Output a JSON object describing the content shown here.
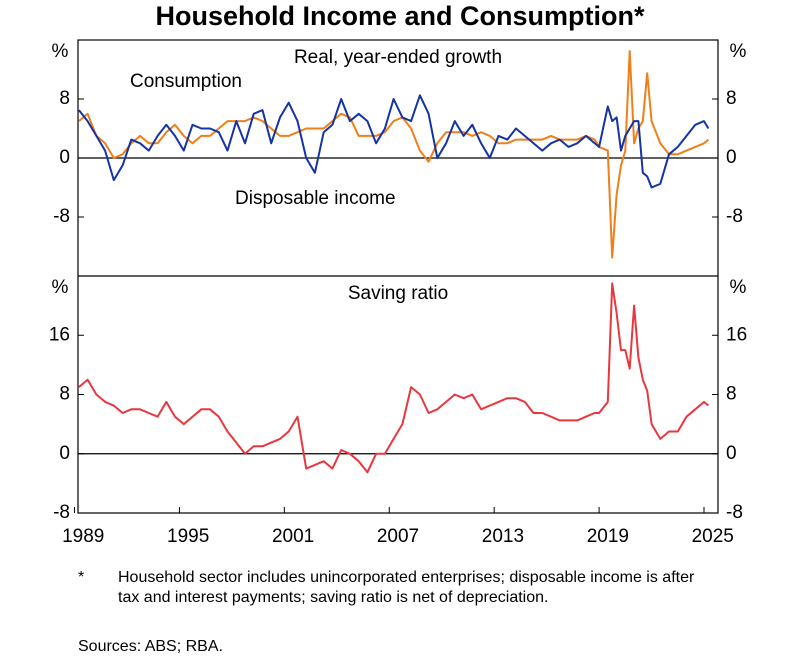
{
  "title": "Household Income and Consumption*",
  "footnote": {
    "marker": "*",
    "text": "Household sector includes unincorporated enterprises; disposable income is after tax and interest payments; saving ratio is net of depreciation."
  },
  "sources": "Sources: ABS; RBA.",
  "chart_data": [
    {
      "type": "line",
      "subtitle": "Real, year-ended growth",
      "y_unit": "%",
      "xlim": [
        1989.2,
        2025.8
      ],
      "ylim": [
        -16,
        16
      ],
      "yticks": [
        -8,
        0,
        8
      ],
      "x": [
        1989.25,
        1989.75,
        1990.25,
        1990.75,
        1991.25,
        1991.75,
        1992.25,
        1992.75,
        1993.25,
        1993.75,
        1994.25,
        1994.75,
        1995.25,
        1995.75,
        1996.25,
        1996.75,
        1997.25,
        1997.75,
        1998.25,
        1998.75,
        1999.25,
        1999.75,
        2000.25,
        2000.75,
        2001.25,
        2001.75,
        2002.25,
        2002.75,
        2003.25,
        2003.75,
        2004.25,
        2004.75,
        2005.25,
        2005.75,
        2006.25,
        2006.75,
        2007.25,
        2007.75,
        2008.25,
        2008.75,
        2009.25,
        2009.75,
        2010.25,
        2010.75,
        2011.25,
        2011.75,
        2012.25,
        2012.75,
        2013.25,
        2013.75,
        2014.25,
        2014.75,
        2015.25,
        2015.75,
        2016.25,
        2016.75,
        2017.25,
        2017.75,
        2018.25,
        2018.75,
        2019,
        2019.5,
        2019.75,
        2020,
        2020.25,
        2020.5,
        2020.75,
        2021,
        2021.25,
        2021.5,
        2021.75,
        2022,
        2022.5,
        2023,
        2023.5,
        2024,
        2024.5,
        2025,
        2025.25
      ],
      "series": [
        {
          "name": "Consumption",
          "color": "#f07f1a",
          "values": [
            5,
            6,
            3,
            2,
            0,
            0.5,
            2,
            3,
            2,
            2,
            3.5,
            4.5,
            3,
            2,
            3,
            3,
            4,
            5,
            5,
            5,
            5.5,
            5,
            4,
            3,
            3,
            3.5,
            4,
            4,
            4,
            5,
            6,
            5.5,
            3,
            3,
            3,
            3.5,
            5,
            5.5,
            4,
            1,
            -0.5,
            2,
            3.5,
            3.5,
            3.5,
            3,
            3.5,
            3,
            2,
            2,
            2.5,
            2.5,
            2.5,
            2.5,
            3,
            2.5,
            2.5,
            2.5,
            3,
            2.5,
            1.5,
            1,
            -13.5,
            -5,
            -1,
            1,
            14.5,
            2,
            4,
            5,
            11.5,
            5,
            2,
            0.5,
            0.5,
            1,
            1.5,
            2,
            2.5
          ]
        },
        {
          "name": "Disposable income",
          "color": "#1434a4",
          "values": [
            6.5,
            5,
            3,
            1,
            -3,
            -1,
            2.5,
            2,
            1,
            3,
            4.5,
            3,
            1,
            4.5,
            4,
            4,
            3.5,
            1,
            5,
            2,
            6,
            6.5,
            2,
            5.5,
            7.5,
            5,
            0,
            -2,
            3.5,
            4.5,
            8,
            5,
            6,
            5,
            2,
            4,
            8,
            5.5,
            5,
            8.5,
            6,
            0,
            2,
            5,
            3,
            4.5,
            2,
            0,
            3,
            2.5,
            4,
            3,
            2,
            1,
            2,
            2.5,
            1.5,
            2,
            3,
            2,
            1.5,
            7,
            5,
            5.5,
            1,
            3,
            4,
            5,
            5,
            -2,
            -2.5,
            -4,
            -3.5,
            0.5,
            1.5,
            3,
            4.5,
            5,
            4
          ]
        }
      ]
    },
    {
      "type": "line",
      "subtitle": "Saving ratio",
      "y_unit": "%",
      "xlim": [
        1989.2,
        2025.8
      ],
      "ylim": [
        -8,
        24
      ],
      "yticks": [
        -8,
        0,
        8,
        16
      ],
      "xticks": [
        1989,
        1995,
        2001,
        2007,
        2013,
        2019,
        2025
      ],
      "x": [
        1989.25,
        1989.75,
        1990.25,
        1990.75,
        1991.25,
        1991.75,
        1992.25,
        1992.75,
        1993.25,
        1993.75,
        1994.25,
        1994.75,
        1995.25,
        1995.75,
        1996.25,
        1996.75,
        1997.25,
        1997.75,
        1998.25,
        1998.75,
        1999.25,
        1999.75,
        2000.25,
        2000.75,
        2001.25,
        2001.75,
        2002.25,
        2002.75,
        2003.25,
        2003.75,
        2004.25,
        2004.75,
        2005.25,
        2005.75,
        2006.25,
        2006.75,
        2007.25,
        2007.75,
        2008.25,
        2008.75,
        2009.25,
        2009.75,
        2010.25,
        2010.75,
        2011.25,
        2011.75,
        2012.25,
        2012.75,
        2013.25,
        2013.75,
        2014.25,
        2014.75,
        2015.25,
        2015.75,
        2016.25,
        2016.75,
        2017.25,
        2017.75,
        2018.25,
        2018.75,
        2019,
        2019.5,
        2019.75,
        2020,
        2020.25,
        2020.5,
        2020.75,
        2021,
        2021.25,
        2021.5,
        2021.75,
        2022,
        2022.5,
        2023,
        2023.5,
        2024,
        2024.5,
        2025,
        2025.25
      ],
      "series": [
        {
          "color": "#e8373e",
          "values": [
            9,
            10,
            8,
            7,
            6.5,
            5.5,
            6,
            6,
            5.5,
            5,
            7,
            5,
            4,
            5,
            6,
            6,
            5,
            3,
            1.5,
            0,
            1,
            1,
            1.5,
            2,
            3,
            5,
            -2,
            -1.5,
            -1,
            -2,
            0.5,
            0,
            -1,
            -2.5,
            0,
            0,
            2,
            4,
            9,
            8,
            5.5,
            6,
            7,
            8,
            7.5,
            8,
            6,
            6.5,
            7,
            7.5,
            7.5,
            7,
            5.5,
            5.5,
            5,
            4.5,
            4.5,
            4.5,
            5,
            5.5,
            5.5,
            7,
            23,
            19,
            14,
            14,
            11.5,
            20,
            13,
            10,
            8.5,
            4,
            2,
            3,
            3,
            5,
            6,
            7,
            6.5
          ]
        }
      ]
    }
  ]
}
